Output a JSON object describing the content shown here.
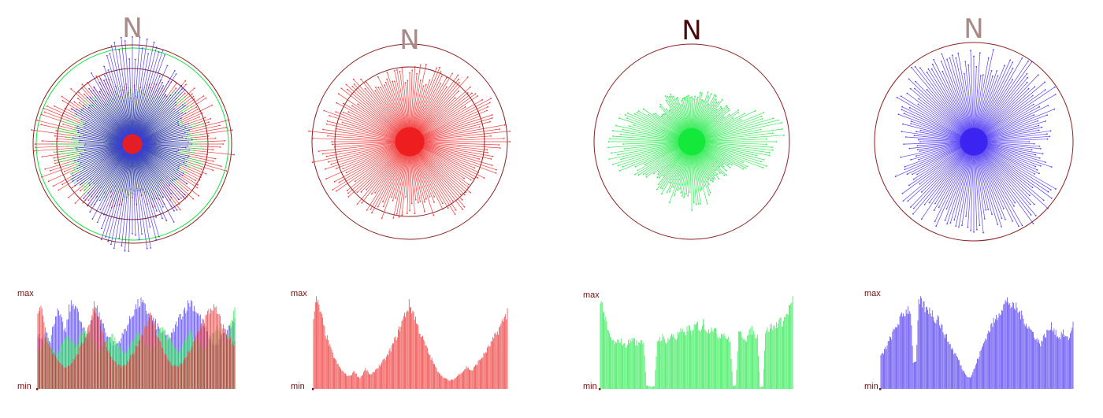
{
  "north_label": "N",
  "hist_max_label": "max",
  "hist_min_label": "min",
  "colors": {
    "red": "#ee1c1c",
    "green": "#12e83a",
    "blue": "#3a22f0",
    "ring": "#8b2020",
    "label": "#7a1010",
    "north_faded": "#a98a86",
    "north_dark": "#4a0a0a"
  },
  "chart_data": [
    {
      "type": "rose",
      "channel": "rgb-composite",
      "north_label": "N",
      "bins": 180,
      "series": [
        {
          "color": "red",
          "profile": [
            0.55,
            0.78,
            0.97,
            0.78,
            0.55,
            0.78,
            0.97,
            0.78
          ]
        },
        {
          "color": "green",
          "profile": [
            0.55,
            0.65,
            0.7,
            0.6,
            0.5,
            0.65,
            0.75,
            0.6
          ]
        },
        {
          "color": "blue",
          "profile": [
            1.05,
            0.7,
            0.55,
            0.7,
            1.05,
            0.7,
            0.55,
            0.7
          ]
        }
      ],
      "core_radius": 0.1
    },
    {
      "type": "rose",
      "channel": "red",
      "north_label": "N",
      "bins": 180,
      "series": [
        {
          "color": "red",
          "profile": [
            0.72,
            0.82,
            0.95,
            0.82,
            0.72,
            0.82,
            0.95,
            0.82
          ]
        }
      ],
      "core_radius": 0.15
    },
    {
      "type": "rose",
      "channel": "green",
      "north_label": "N",
      "bins": 180,
      "series": [
        {
          "color": "green",
          "profile": [
            0.48,
            0.5,
            0.95,
            0.45,
            0.65,
            0.55,
            0.9,
            0.5
          ]
        }
      ],
      "core_radius": 0.14
    },
    {
      "type": "rose",
      "channel": "blue",
      "north_label": "N",
      "bins": 180,
      "series": [
        {
          "color": "blue",
          "profile": [
            0.85,
            0.95,
            0.7,
            0.95,
            0.85,
            0.9,
            0.65,
            0.9
          ]
        }
      ],
      "core_radius": 0.14
    },
    {
      "type": "histogram",
      "channel": "rgb-composite",
      "ylabels": [
        "max",
        "min"
      ],
      "bins": 64,
      "series": [
        {
          "color": "blue",
          "values": [
            0.6,
            0.55,
            0.58,
            0.65,
            0.5,
            0.72,
            0.85,
            0.8,
            0.7,
            0.62,
            0.88,
            0.92,
            0.95,
            0.8,
            0.7,
            0.6,
            0.55,
            0.75,
            0.82,
            0.85,
            0.78,
            0.7,
            0.6,
            0.55,
            0.5,
            0.48,
            0.52,
            0.58,
            0.66,
            0.72,
            0.8,
            0.88,
            0.92,
            0.95,
            0.9,
            0.85,
            0.8,
            0.75,
            0.7,
            0.65,
            0.6,
            0.58,
            0.55,
            0.6,
            0.68,
            0.76,
            0.82,
            0.88,
            0.92,
            0.96,
            0.9,
            0.84,
            0.78,
            0.7,
            0.62,
            0.55,
            0.5,
            0.48,
            0.52,
            0.58,
            0.62,
            0.66,
            0.7,
            0.74
          ]
        },
        {
          "color": "green",
          "values": [
            0.4,
            0.45,
            0.5,
            0.55,
            0.48,
            0.42,
            0.38,
            0.45,
            0.52,
            0.58,
            0.55,
            0.5,
            0.46,
            0.52,
            0.6,
            0.66,
            0.62,
            0.56,
            0.5,
            0.45,
            0.42,
            0.48,
            0.54,
            0.6,
            0.58,
            0.52,
            0.46,
            0.42,
            0.4,
            0.45,
            0.5,
            0.56,
            0.6,
            0.56,
            0.5,
            0.46,
            0.44,
            0.48,
            0.55,
            0.62,
            0.66,
            0.6,
            0.54,
            0.48,
            0.44,
            0.42,
            0.46,
            0.52,
            0.58,
            0.62,
            0.58,
            0.52,
            0.48,
            0.45,
            0.5,
            0.56,
            0.62,
            0.68,
            0.62,
            0.56,
            0.52,
            0.6,
            0.75,
            0.85
          ]
        },
        {
          "color": "red",
          "values": [
            0.85,
            0.95,
            0.7,
            0.55,
            0.45,
            0.38,
            0.32,
            0.28,
            0.25,
            0.24,
            0.26,
            0.3,
            0.35,
            0.4,
            0.48,
            0.56,
            0.66,
            0.78,
            0.92,
            0.88,
            0.72,
            0.58,
            0.46,
            0.38,
            0.32,
            0.28,
            0.25,
            0.24,
            0.26,
            0.3,
            0.36,
            0.42,
            0.5,
            0.58,
            0.66,
            0.74,
            0.8,
            0.72,
            0.62,
            0.52,
            0.44,
            0.36,
            0.3,
            0.26,
            0.24,
            0.25,
            0.28,
            0.32,
            0.38,
            0.44,
            0.52,
            0.6,
            0.68,
            0.74,
            0.8,
            0.86,
            0.9,
            0.85,
            0.78,
            0.7,
            0.62,
            0.56,
            0.52,
            0.5
          ]
        }
      ]
    },
    {
      "type": "histogram",
      "channel": "red",
      "ylabels": [
        "max",
        "min"
      ],
      "bins": 72,
      "series": [
        {
          "color": "red",
          "values": [
            0.8,
            0.97,
            0.9,
            0.78,
            0.65,
            0.55,
            0.46,
            0.38,
            0.32,
            0.26,
            0.22,
            0.18,
            0.15,
            0.14,
            0.16,
            0.2,
            0.14,
            0.12,
            0.16,
            0.22,
            0.18,
            0.15,
            0.18,
            0.22,
            0.25,
            0.28,
            0.32,
            0.36,
            0.42,
            0.48,
            0.55,
            0.62,
            0.7,
            0.78,
            0.85,
            0.92,
            0.88,
            0.8,
            0.7,
            0.62,
            0.55,
            0.48,
            0.4,
            0.34,
            0.28,
            0.22,
            0.18,
            0.14,
            0.12,
            0.1,
            0.09,
            0.1,
            0.12,
            0.15,
            0.18,
            0.2,
            0.24,
            0.22,
            0.2,
            0.24,
            0.28,
            0.32,
            0.36,
            0.4,
            0.45,
            0.5,
            0.55,
            0.6,
            0.66,
            0.72,
            0.78,
            0.84
          ]
        }
      ]
    },
    {
      "type": "histogram",
      "channel": "green",
      "ylabels": [
        "max",
        "min"
      ],
      "bins": 72,
      "series": [
        {
          "color": "green",
          "values": [
            0.98,
            0.9,
            0.75,
            0.62,
            0.56,
            0.52,
            0.5,
            0.55,
            0.52,
            0.48,
            0.5,
            0.54,
            0.56,
            0.52,
            0.5,
            0.55,
            0.52,
            0.04,
            0.03,
            0.02,
            0.03,
            0.54,
            0.56,
            0.58,
            0.52,
            0.55,
            0.58,
            0.6,
            0.56,
            0.62,
            0.64,
            0.6,
            0.66,
            0.68,
            0.62,
            0.7,
            0.72,
            0.66,
            0.74,
            0.68,
            0.64,
            0.7,
            0.66,
            0.62,
            0.58,
            0.64,
            0.6,
            0.56,
            0.52,
            0.03,
            0.04,
            0.6,
            0.62,
            0.58,
            0.56,
            0.62,
            0.66,
            0.6,
            0.58,
            0.02,
            0.03,
            0.64,
            0.66,
            0.7,
            0.68,
            0.72,
            0.76,
            0.74,
            0.78,
            0.84,
            0.92,
            0.98
          ]
        }
      ]
    },
    {
      "type": "histogram",
      "channel": "blue",
      "ylabels": [
        "max",
        "min"
      ],
      "bins": 72,
      "series": [
        {
          "color": "blue",
          "values": [
            0.35,
            0.4,
            0.46,
            0.52,
            0.58,
            0.64,
            0.7,
            0.76,
            0.8,
            0.84,
            0.88,
            0.86,
            0.3,
            0.28,
            0.92,
            0.96,
            0.9,
            0.86,
            0.88,
            0.82,
            0.76,
            0.8,
            0.7,
            0.64,
            0.58,
            0.52,
            0.46,
            0.4,
            0.36,
            0.3,
            0.22,
            0.18,
            0.14,
            0.12,
            0.18,
            0.26,
            0.34,
            0.42,
            0.5,
            0.58,
            0.64,
            0.7,
            0.74,
            0.8,
            0.86,
            0.9,
            0.94,
            0.97,
            0.92,
            0.88,
            0.9,
            0.84,
            0.8,
            0.76,
            0.7,
            0.66,
            0.62,
            0.58,
            0.52,
            0.5,
            0.56,
            0.6,
            0.64,
            0.68,
            0.66,
            0.6,
            0.56,
            0.62,
            0.58,
            0.54,
            0.6,
            0.7
          ]
        }
      ]
    }
  ]
}
